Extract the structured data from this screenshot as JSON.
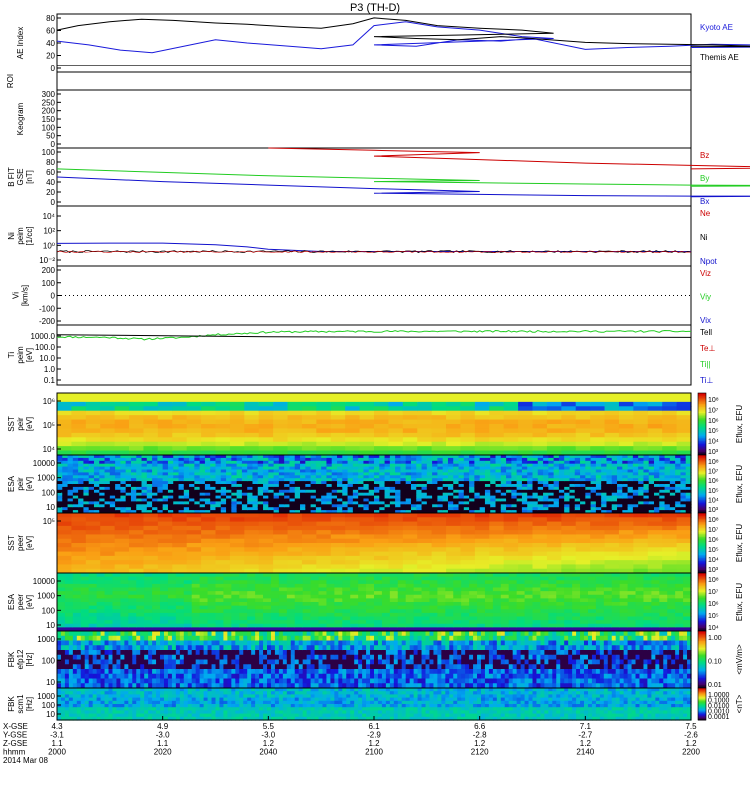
{
  "title": "P3 (TH-D)",
  "colors": {
    "kyoto": "#1a1adb",
    "themis": "#000000",
    "bz": "#cc0000",
    "by": "#22cc22",
    "bx": "#1111cc",
    "ne": "#cc0000",
    "ni": "#000000",
    "npot": "#1111cc",
    "tell": "#000000",
    "teperp": "#cc0000",
    "tipar": "#22cc22",
    "tiperp": "#1111cc"
  },
  "chart_data": [
    {
      "type": "line",
      "ylabel": "AE Index",
      "yticks": [
        "80",
        "60",
        "40",
        "20",
        "0"
      ],
      "ylim": [
        -10,
        80
      ],
      "legend": [
        "Kyoto AE",
        "Themis AE"
      ],
      "series": [
        {
          "name": "Kyoto AE",
          "x": [
            2000,
            2006,
            2012,
            2018,
            2024,
            2030,
            2036,
            2044,
            2050,
            2056,
            2060,
            2066,
            2072,
            2080,
            2088,
            2094,
            2100,
            2108,
            2116,
            2124,
            2130,
            2140,
            2148,
            2156,
            2164,
            2172,
            2180,
            2188,
            2196,
            2200
          ],
          "values": [
            38,
            32,
            24,
            20,
            30,
            40,
            35,
            30,
            26,
            32,
            62,
            68,
            60,
            55,
            45,
            42,
            32,
            30,
            40,
            38,
            42,
            25,
            28,
            30,
            33,
            32,
            30,
            28,
            30,
            28
          ]
        },
        {
          "name": "Themis AE",
          "x": [
            2000,
            2004,
            2010,
            2016,
            2022,
            2030,
            2036,
            2044,
            2050,
            2056,
            2060,
            2066,
            2072,
            2080,
            2088,
            2094,
            2100,
            2108,
            2116,
            2124,
            2130,
            2140,
            2148,
            2156,
            2164,
            2172,
            2180,
            2188,
            2196,
            2200
          ],
          "values": [
            55,
            62,
            68,
            72,
            70,
            66,
            64,
            60,
            58,
            65,
            74,
            70,
            62,
            58,
            55,
            50,
            45,
            42,
            40,
            45,
            42,
            36,
            34,
            33,
            32,
            30,
            32,
            30,
            28,
            30
          ]
        }
      ]
    },
    {
      "type": "heatmap",
      "ylabel": "ROI",
      "note": "empty"
    },
    {
      "type": "line",
      "ylabel": "Keogram",
      "yticks": [
        "300",
        "250",
        "200",
        "150",
        "100",
        "50",
        "0"
      ],
      "ylim": [
        0,
        300
      ],
      "note": "empty"
    },
    {
      "type": "line",
      "ylabel": "B FIT [nT]",
      "ylabel_lines": [
        "B FIT",
        "GSE",
        "[nT]"
      ],
      "yticks": [
        "100",
        "80",
        "60",
        "40",
        "20",
        "0"
      ],
      "ylim": [
        0,
        100
      ],
      "legend": [
        "Bz",
        "By",
        "Bx"
      ],
      "series": [
        {
          "name": "Bz",
          "x": [
            2040,
            2060,
            2080,
            2100,
            2120,
            2140,
            2160,
            2180,
            2200
          ],
          "values": [
            100,
            96,
            92,
            86,
            80,
            74,
            70,
            66,
            64
          ]
        },
        {
          "name": "By",
          "x": [
            2000,
            2020,
            2040,
            2060,
            2080,
            2100,
            2120,
            2140,
            2160,
            2180,
            2200
          ],
          "values": [
            64,
            58,
            52,
            48,
            44,
            42,
            40,
            38,
            36,
            35,
            34
          ]
        },
        {
          "name": "Bx",
          "x": [
            2000,
            2020,
            2040,
            2060,
            2080,
            2100,
            2120,
            2140,
            2160,
            2180,
            2200
          ],
          "values": [
            50,
            42,
            36,
            30,
            25,
            22,
            20,
            18,
            17,
            17,
            16
          ]
        }
      ]
    },
    {
      "type": "line",
      "ylabel": "Ni [1/cc]",
      "ylabel_lines": [
        "Ni",
        "peim",
        "[1/cc]"
      ],
      "yticks": [
        "10⁻²",
        "10⁰",
        "10²",
        "10⁴"
      ],
      "legend": [
        "Ne",
        "Ni",
        "Npot"
      ],
      "series": [
        {
          "name": "Npot",
          "x": [
            2000,
            2010,
            2020,
            2030,
            2036,
            2040,
            2050,
            2100,
            2150,
            2200
          ],
          "values": [
            6,
            6.5,
            6.5,
            4,
            2,
            1,
            0.5,
            0.5,
            0.5,
            0.5
          ]
        },
        {
          "name": "Ni",
          "x": [
            2000,
            2100,
            2200
          ],
          "values": [
            0.5,
            0.4,
            0.4
          ]
        }
      ]
    },
    {
      "type": "line",
      "ylabel": "Vi [km/s]",
      "ylabel_lines": [
        "Vi",
        "[km/s]"
      ],
      "yticks": [
        "200",
        "100",
        "0",
        "-100",
        "-200"
      ],
      "ylim": [
        -250,
        250
      ],
      "legend": [
        "Viz",
        "Viy",
        "Vix"
      ]
    },
    {
      "type": "line",
      "ylabel": "Ti [eV]",
      "ylabel_lines": [
        "Ti",
        "peim",
        "[eV]"
      ],
      "yticks": [
        "1000.0",
        "100.0",
        "10.0",
        "1.0",
        "0.1"
      ],
      "legend": [
        "Tell",
        "Te⊥",
        "Ti||",
        "Ti⊥"
      ],
      "series": [
        {
          "name": "Ti||",
          "x": [
            2000,
            2010,
            2016,
            2024,
            2030,
            2036,
            2040,
            2050,
            2100,
            2150,
            2200
          ],
          "values": [
            800,
            700,
            500,
            700,
            1200,
            1600,
            2000,
            2200,
            2300,
            2300,
            2300
          ]
        },
        {
          "name": "Tell",
          "x": [
            2000,
            2040,
            2100,
            2150,
            2200
          ],
          "values": [
            1200,
            800,
            750,
            720,
            700
          ]
        }
      ]
    },
    {
      "type": "heatmap",
      "ylabel": "SST [eV]",
      "ylabel_lines": [
        "SST",
        "peir",
        "[eV]"
      ],
      "yticks": [
        "10⁶",
        "10⁵",
        "10⁴"
      ],
      "colorbar": {
        "label": "Eflux, EFU",
        "ticks": [
          "10⁸",
          "10⁷",
          "10⁶",
          "10⁵",
          "10⁴",
          "10³"
        ]
      }
    },
    {
      "type": "heatmap",
      "ylabel": "ESA [eV]",
      "ylabel_lines": [
        "ESA",
        "peir",
        "[eV]"
      ],
      "yticks": [
        "10000",
        "1000",
        "100",
        "10"
      ],
      "colorbar": {
        "label": "Eflux, EFU",
        "ticks": [
          "10⁸",
          "10⁷",
          "10⁶",
          "10⁵",
          "10⁴",
          "10³"
        ]
      }
    },
    {
      "type": "heatmap",
      "ylabel": "SST [eV]",
      "ylabel_lines": [
        "SST",
        "peer",
        "[eV]"
      ],
      "yticks": [
        "10⁵"
      ],
      "colorbar": {
        "label": "Eflux, EFU",
        "ticks": [
          "10⁸",
          "10⁷",
          "10⁶",
          "10⁵",
          "10⁴",
          "10³"
        ]
      }
    },
    {
      "type": "heatmap",
      "ylabel": "ESA [eV]",
      "ylabel_lines": [
        "ESA",
        "peer",
        "[eV]"
      ],
      "yticks": [
        "10000",
        "1000",
        "100",
        "10"
      ],
      "colorbar": {
        "label": "Eflux, EFU",
        "ticks": [
          "10⁸",
          "10⁷",
          "10⁶",
          "10⁵",
          "10⁴"
        ]
      }
    },
    {
      "type": "heatmap",
      "ylabel": "FBK [Hz]",
      "ylabel_lines": [
        "FBK",
        "efp12",
        "[Hz]"
      ],
      "yticks": [
        "1000",
        "100",
        "10"
      ],
      "colorbar": {
        "label": "<mV/m>",
        "ticks": [
          "1.00",
          "0.10",
          "0.01"
        ]
      }
    },
    {
      "type": "heatmap",
      "ylabel": "FBK [Hz]",
      "ylabel_lines": [
        "FBK",
        "scm1",
        "[Hz]"
      ],
      "yticks": [
        "1000",
        "100",
        "10"
      ],
      "colorbar": {
        "label": "<nT>",
        "ticks": [
          "1.0000",
          "0.1000",
          "0.0100",
          "0.0010",
          "0.0001"
        ]
      }
    }
  ],
  "x_axis": {
    "row_labels": [
      "X-GSE",
      "Y-GSE",
      "Z-GSE",
      "hhmm",
      "2014 Mar 08"
    ],
    "ticks": [
      {
        "x": "4.3",
        "y": "-3.1",
        "z": "1.1",
        "t": "2000"
      },
      {
        "x": "4.9",
        "y": "-3.0",
        "z": "1.1",
        "t": "2020"
      },
      {
        "x": "5.5",
        "y": "-3.0",
        "z": "1.2",
        "t": "2040"
      },
      {
        "x": "6.1",
        "y": "-2.9",
        "z": "1.2",
        "t": "2100"
      },
      {
        "x": "6.6",
        "y": "-2.8",
        "z": "1.2",
        "t": "2120"
      },
      {
        "x": "7.1",
        "y": "-2.7",
        "z": "1.2",
        "t": "2140"
      },
      {
        "x": "7.5",
        "y": "-2.6",
        "z": "1.2",
        "t": "2200"
      }
    ]
  }
}
